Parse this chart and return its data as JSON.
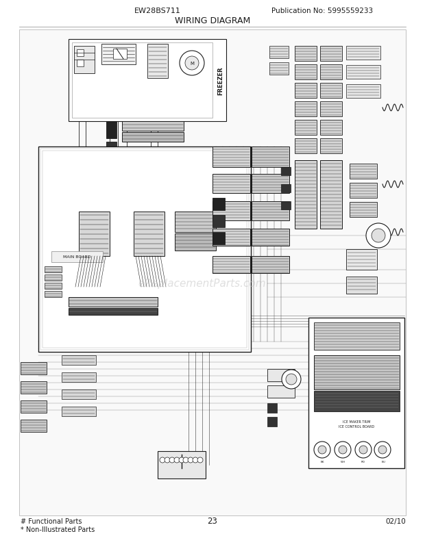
{
  "title_model": "EW28BS711",
  "title_pub": "Publication No: 5995559233",
  "title_diagram": "WIRING DIAGRAM",
  "page_number": "23",
  "date_code": "02/10",
  "footer_line1": "# Functional Parts",
  "footer_line2": "* Non-Illustrated Parts",
  "bg_color": "#ffffff",
  "line_color": "#1a1a1a",
  "gray1": "#cccccc",
  "gray2": "#999999",
  "gray3": "#555555",
  "gray4": "#333333",
  "watermark": "eReplacementParts.com",
  "watermark_color": "#c0c0c0",
  "fig_width": 6.2,
  "fig_height": 8.03,
  "dpi": 100
}
